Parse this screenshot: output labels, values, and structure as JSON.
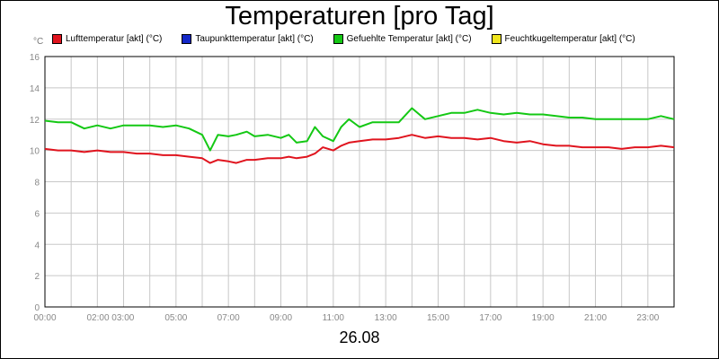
{
  "title": "Temperaturen [pro Tag]",
  "unit": "°C",
  "x_caption": "26.08",
  "legend": [
    {
      "label": "Lufttemperatur [akt] (°C)",
      "color": "#e0141e"
    },
    {
      "label": "Taupunkttemperatur [akt] (°C)",
      "color": "#1428c8"
    },
    {
      "label": "Gefuehlte Temperatur [akt] (°C)",
      "color": "#14c814"
    },
    {
      "label": "Feuchtkugeltemperatur [akt] (°C)",
      "color": "#f0e61e"
    }
  ],
  "chart_data": {
    "type": "line",
    "title": "Temperaturen [pro Tag]",
    "ylabel": "°C",
    "xlabel": "26.08",
    "xlim": [
      0,
      24
    ],
    "ylim": [
      0,
      16
    ],
    "y_ticks": [
      "0",
      "2",
      "4",
      "6",
      "8",
      "10",
      "12",
      "14",
      "16"
    ],
    "x_tick_labels": [
      {
        "hour": 0,
        "label": "00:00"
      },
      {
        "hour": 2.5,
        "label": "02:00 03:00"
      },
      {
        "hour": 5,
        "label": "05:00"
      },
      {
        "hour": 7,
        "label": "07:00"
      },
      {
        "hour": 9,
        "label": "09:00"
      },
      {
        "hour": 11,
        "label": "11:00"
      },
      {
        "hour": 13,
        "label": "13:00"
      },
      {
        "hour": 15,
        "label": "15:00"
      },
      {
        "hour": 17,
        "label": "17:00"
      },
      {
        "hour": 19,
        "label": "19:00"
      },
      {
        "hour": 21,
        "label": "21:00"
      },
      {
        "hour": 23,
        "label": "23:00"
      }
    ],
    "grid": true,
    "legend_position": "top",
    "series": [
      {
        "name": "Lufttemperatur [akt] (°C)",
        "color": "#e0141e",
        "points": [
          [
            0.0,
            10.1
          ],
          [
            0.5,
            10.0
          ],
          [
            1.0,
            10.0
          ],
          [
            1.5,
            9.9
          ],
          [
            2.0,
            10.0
          ],
          [
            2.5,
            9.9
          ],
          [
            3.0,
            9.9
          ],
          [
            3.5,
            9.8
          ],
          [
            4.0,
            9.8
          ],
          [
            4.5,
            9.7
          ],
          [
            5.0,
            9.7
          ],
          [
            5.5,
            9.6
          ],
          [
            6.0,
            9.5
          ],
          [
            6.3,
            9.2
          ],
          [
            6.6,
            9.4
          ],
          [
            7.0,
            9.3
          ],
          [
            7.3,
            9.2
          ],
          [
            7.7,
            9.4
          ],
          [
            8.0,
            9.4
          ],
          [
            8.5,
            9.5
          ],
          [
            9.0,
            9.5
          ],
          [
            9.3,
            9.6
          ],
          [
            9.6,
            9.5
          ],
          [
            10.0,
            9.6
          ],
          [
            10.3,
            9.8
          ],
          [
            10.6,
            10.2
          ],
          [
            11.0,
            10.0
          ],
          [
            11.3,
            10.3
          ],
          [
            11.6,
            10.5
          ],
          [
            12.0,
            10.6
          ],
          [
            12.5,
            10.7
          ],
          [
            13.0,
            10.7
          ],
          [
            13.5,
            10.8
          ],
          [
            14.0,
            11.0
          ],
          [
            14.5,
            10.8
          ],
          [
            15.0,
            10.9
          ],
          [
            15.5,
            10.8
          ],
          [
            16.0,
            10.8
          ],
          [
            16.5,
            10.7
          ],
          [
            17.0,
            10.8
          ],
          [
            17.5,
            10.6
          ],
          [
            18.0,
            10.5
          ],
          [
            18.5,
            10.6
          ],
          [
            19.0,
            10.4
          ],
          [
            19.5,
            10.3
          ],
          [
            20.0,
            10.3
          ],
          [
            20.5,
            10.2
          ],
          [
            21.0,
            10.2
          ],
          [
            21.5,
            10.2
          ],
          [
            22.0,
            10.1
          ],
          [
            22.5,
            10.2
          ],
          [
            23.0,
            10.2
          ],
          [
            23.5,
            10.3
          ],
          [
            24.0,
            10.2
          ]
        ]
      },
      {
        "name": "Gefuehlte Temperatur [akt] (°C)",
        "color": "#14c814",
        "points": [
          [
            0.0,
            11.9
          ],
          [
            0.5,
            11.8
          ],
          [
            1.0,
            11.8
          ],
          [
            1.5,
            11.4
          ],
          [
            2.0,
            11.6
          ],
          [
            2.5,
            11.4
          ],
          [
            3.0,
            11.6
          ],
          [
            3.5,
            11.6
          ],
          [
            4.0,
            11.6
          ],
          [
            4.5,
            11.5
          ],
          [
            5.0,
            11.6
          ],
          [
            5.5,
            11.4
          ],
          [
            6.0,
            11.0
          ],
          [
            6.3,
            10.0
          ],
          [
            6.6,
            11.0
          ],
          [
            7.0,
            10.9
          ],
          [
            7.3,
            11.0
          ],
          [
            7.7,
            11.2
          ],
          [
            8.0,
            10.9
          ],
          [
            8.5,
            11.0
          ],
          [
            9.0,
            10.8
          ],
          [
            9.3,
            11.0
          ],
          [
            9.6,
            10.5
          ],
          [
            10.0,
            10.6
          ],
          [
            10.3,
            11.5
          ],
          [
            10.6,
            10.9
          ],
          [
            11.0,
            10.6
          ],
          [
            11.3,
            11.5
          ],
          [
            11.6,
            12.0
          ],
          [
            12.0,
            11.5
          ],
          [
            12.5,
            11.8
          ],
          [
            13.0,
            11.8
          ],
          [
            13.5,
            11.8
          ],
          [
            14.0,
            12.7
          ],
          [
            14.5,
            12.0
          ],
          [
            15.0,
            12.2
          ],
          [
            15.5,
            12.4
          ],
          [
            16.0,
            12.4
          ],
          [
            16.5,
            12.6
          ],
          [
            17.0,
            12.4
          ],
          [
            17.5,
            12.3
          ],
          [
            18.0,
            12.4
          ],
          [
            18.5,
            12.3
          ],
          [
            19.0,
            12.3
          ],
          [
            19.5,
            12.2
          ],
          [
            20.0,
            12.1
          ],
          [
            20.5,
            12.1
          ],
          [
            21.0,
            12.0
          ],
          [
            21.5,
            12.0
          ],
          [
            22.0,
            12.0
          ],
          [
            22.5,
            12.0
          ],
          [
            23.0,
            12.0
          ],
          [
            23.5,
            12.2
          ],
          [
            24.0,
            12.0
          ]
        ]
      }
    ]
  }
}
